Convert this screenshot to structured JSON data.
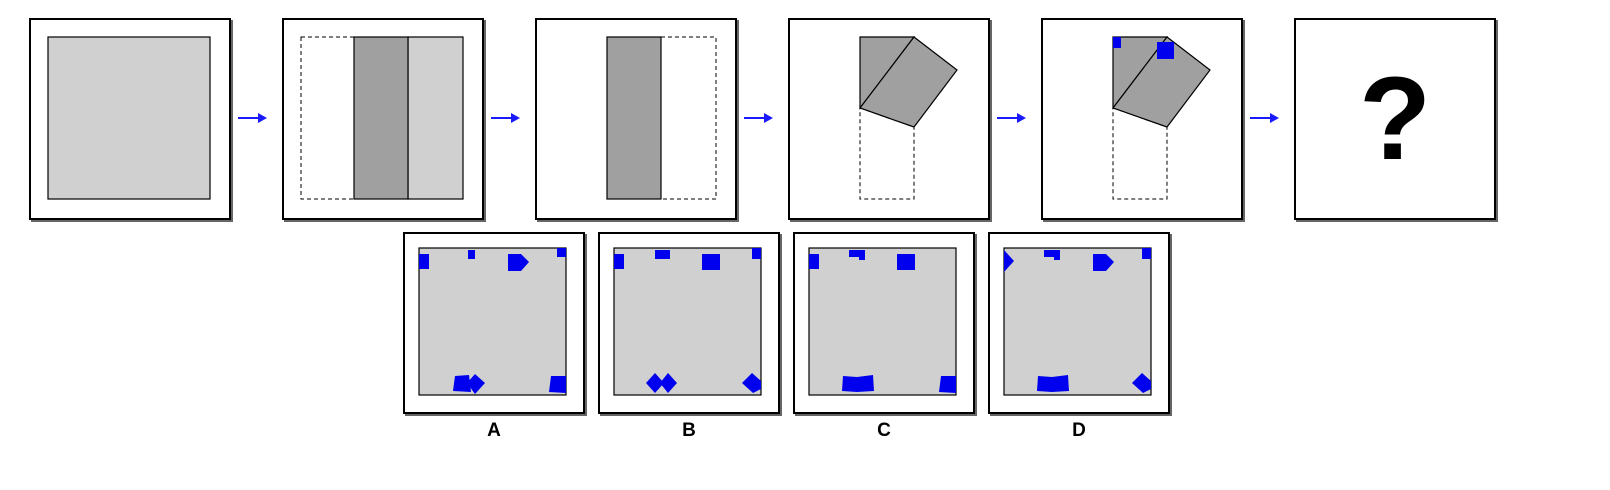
{
  "colors": {
    "paper": "#d0d0d0",
    "folded": "#a0a0a0",
    "hole": "#0000ee",
    "arrow": "#1a1aff"
  },
  "question_mark": "?",
  "options": [
    {
      "label": "A"
    },
    {
      "label": "B"
    },
    {
      "label": "C"
    },
    {
      "label": "D"
    }
  ]
}
